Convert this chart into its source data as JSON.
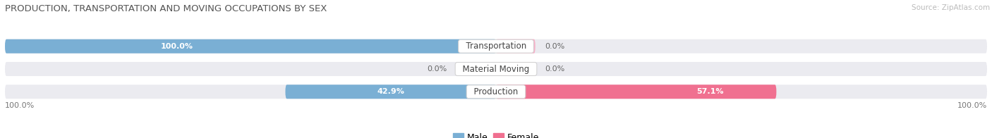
{
  "title": "PRODUCTION, TRANSPORTATION AND MOVING OCCUPATIONS BY SEX",
  "source": "Source: ZipAtlas.com",
  "categories": [
    "Transportation",
    "Material Moving",
    "Production"
  ],
  "male_values": [
    100.0,
    0.0,
    42.9
  ],
  "female_values": [
    0.0,
    0.0,
    57.1
  ],
  "male_color": "#7aafd4",
  "male_color_light": "#bad4ea",
  "female_color": "#f07090",
  "female_color_light": "#f8b0c8",
  "bar_bg_color": "#ebebf0",
  "bar_height": 0.62,
  "bar_gap": 0.12,
  "male_label": "Male",
  "female_label": "Female",
  "title_fontsize": 9.5,
  "source_fontsize": 7.5,
  "label_fontsize": 8.5,
  "value_fontsize": 8,
  "tick_fontsize": 8,
  "legend_fontsize": 9
}
